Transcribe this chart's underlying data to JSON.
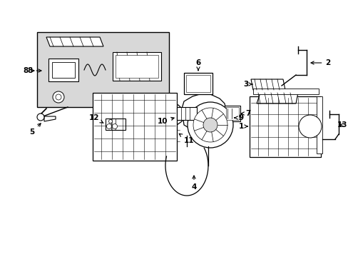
{
  "background_color": "#ffffff",
  "line_color": "#000000",
  "gray_fill": "#d8d8d8",
  "figsize": [
    4.89,
    3.6
  ],
  "dpi": 100
}
